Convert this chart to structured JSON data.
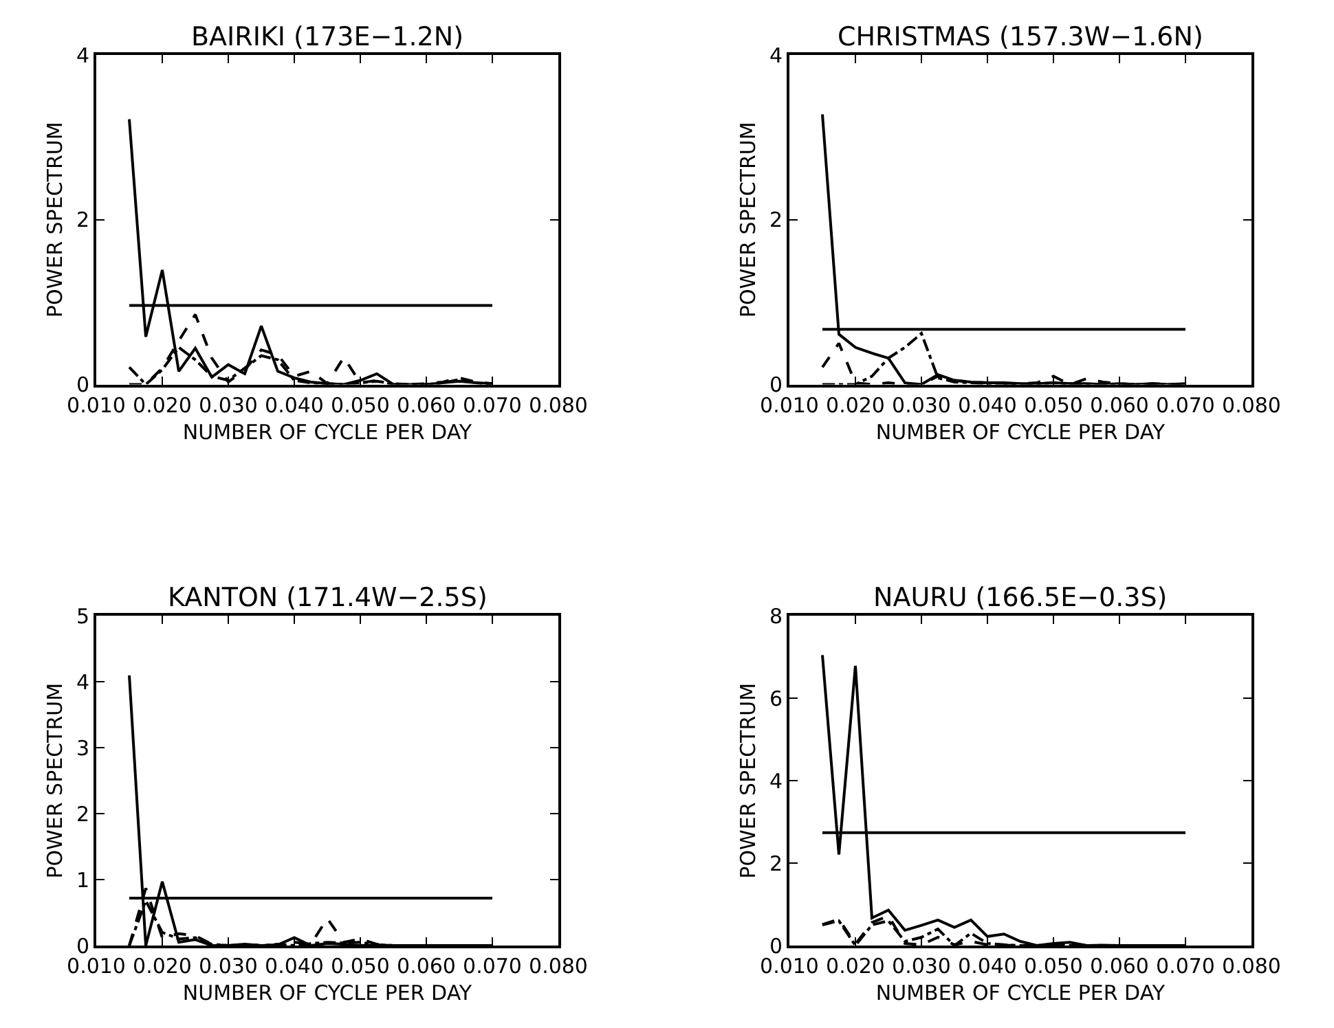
{
  "chart_data": [
    {
      "type": "line",
      "title": "BAIRIKI (173E−1.2N)",
      "xlabel": "NUMBER OF CYCLE PER DAY",
      "ylabel": "POWER SPECTRUM",
      "xlim": [
        0.01,
        0.08
      ],
      "xticks": [
        {
          "value": 0.01,
          "label": "0.010"
        },
        {
          "value": 0.02,
          "label": "0.020"
        },
        {
          "value": 0.03,
          "label": "0.030"
        },
        {
          "value": 0.04,
          "label": "0.040"
        },
        {
          "value": 0.05,
          "label": "0.050"
        },
        {
          "value": 0.06,
          "label": "0.060"
        },
        {
          "value": 0.07,
          "label": "0.070"
        },
        {
          "value": 0.08,
          "label": "0.080"
        }
      ],
      "ylim": [
        0,
        4
      ],
      "yticks": [
        0,
        2,
        4
      ],
      "x": [
        0.015,
        0.0175,
        0.02,
        0.0225,
        0.025,
        0.0275,
        0.03,
        0.0325,
        0.035,
        0.0375,
        0.04,
        0.0425,
        0.045,
        0.0475,
        0.05,
        0.0525,
        0.055,
        0.0575,
        0.06,
        0.0625,
        0.065,
        0.0675,
        0.07
      ],
      "series": [
        {
          "color": "#000000",
          "line_style": "solid",
          "values": [
            3.22,
            0.58,
            1.39,
            0.16,
            0.44,
            0.09,
            0.24,
            0.13,
            0.71,
            0.16,
            0.08,
            0.03,
            0.01,
            0.0,
            0.05,
            0.13,
            0.0,
            0.0,
            0.0,
            0.02,
            0.04,
            0.02,
            0.01
          ]
        },
        {
          "color": "#000000",
          "line_style": "dashed",
          "values": [
            0.0,
            0.0,
            0.2,
            0.53,
            0.85,
            0.32,
            0.03,
            0.18,
            0.42,
            0.36,
            0.1,
            0.16,
            0.01,
            0.33,
            0.02,
            0.05,
            0.0,
            0.0,
            0.01,
            0.03,
            0.08,
            0.03,
            0.01
          ]
        },
        {
          "color": "#000000",
          "line_style": "dotted",
          "values": [
            0.21,
            0.0,
            0.18,
            0.45,
            0.3,
            0.1,
            0.05,
            0.2,
            0.35,
            0.3,
            0.05,
            0.02,
            0.01,
            0.0,
            0.02,
            0.04,
            0.01,
            0.0,
            0.0,
            0.02,
            0.06,
            0.02,
            0.0
          ]
        },
        {
          "color": "#000000",
          "line_style": "solid",
          "values": [
            0.96,
            0.96,
            0.96,
            0.96,
            0.96,
            0.96,
            0.96,
            0.96,
            0.96,
            0.96,
            0.96,
            0.96,
            0.96,
            0.96,
            0.96,
            0.96,
            0.96,
            0.96,
            0.96,
            0.96,
            0.96,
            0.96,
            0.96
          ]
        }
      ]
    },
    {
      "type": "line",
      "title": "CHRISTMAS (157.3W−1.6N)",
      "xlabel": "NUMBER OF CYCLE PER DAY",
      "ylabel": "POWER SPECTRUM",
      "xlim": [
        0.01,
        0.08
      ],
      "xticks": [
        {
          "value": 0.01,
          "label": "0.010"
        },
        {
          "value": 0.02,
          "label": "0.020"
        },
        {
          "value": 0.03,
          "label": "0.030"
        },
        {
          "value": 0.04,
          "label": "0.040"
        },
        {
          "value": 0.05,
          "label": "0.050"
        },
        {
          "value": 0.06,
          "label": "0.060"
        },
        {
          "value": 0.07,
          "label": "0.070"
        },
        {
          "value": 0.08,
          "label": "0.080"
        }
      ],
      "ylim": [
        0,
        4
      ],
      "yticks": [
        0,
        2,
        4
      ],
      "x": [
        0.015,
        0.0175,
        0.02,
        0.0225,
        0.025,
        0.0275,
        0.03,
        0.0325,
        0.035,
        0.0375,
        0.04,
        0.0425,
        0.045,
        0.0475,
        0.05,
        0.0525,
        0.055,
        0.0575,
        0.06,
        0.0625,
        0.065,
        0.0675,
        0.07
      ],
      "series": [
        {
          "color": "#000000",
          "line_style": "solid",
          "values": [
            3.28,
            0.61,
            0.45,
            0.38,
            0.32,
            0.02,
            0.0,
            0.12,
            0.05,
            0.03,
            0.02,
            0.02,
            0.01,
            0.01,
            0.02,
            0.01,
            0.01,
            0.0,
            0.01,
            0.0,
            0.01,
            0.0,
            0.01
          ]
        },
        {
          "color": "#000000",
          "line_style": "dashed",
          "values": [
            0.21,
            0.5,
            0.02,
            0.0,
            0.02,
            0.0,
            0.0,
            0.1,
            0.05,
            0.03,
            0.02,
            0.01,
            0.01,
            0.02,
            0.1,
            0.0,
            0.07,
            0.03,
            0.01,
            0.0,
            0.01,
            0.0,
            0.0
          ]
        },
        {
          "color": "#000000",
          "line_style": "dotted",
          "values": [
            0.0,
            0.0,
            0.0,
            0.1,
            0.32,
            0.45,
            0.62,
            0.08,
            0.03,
            0.02,
            0.01,
            0.01,
            0.0,
            0.01,
            0.02,
            0.01,
            0.0,
            0.0,
            0.0,
            0.0,
            0.0,
            0.0,
            0.0
          ]
        },
        {
          "color": "#000000",
          "line_style": "solid",
          "values": [
            0.67,
            0.67,
            0.67,
            0.67,
            0.67,
            0.67,
            0.67,
            0.67,
            0.67,
            0.67,
            0.67,
            0.67,
            0.67,
            0.67,
            0.67,
            0.67,
            0.67,
            0.67,
            0.67,
            0.67,
            0.67,
            0.67,
            0.67
          ]
        }
      ]
    },
    {
      "type": "line",
      "title": "KANTON (171.4W−2.5S)",
      "xlabel": "NUMBER OF CYCLE PER DAY",
      "ylabel": "POWER SPECTRUM",
      "xlim": [
        0.01,
        0.08
      ],
      "xticks": [
        {
          "value": 0.01,
          "label": "0.010"
        },
        {
          "value": 0.02,
          "label": "0.020"
        },
        {
          "value": 0.03,
          "label": "0.030"
        },
        {
          "value": 0.04,
          "label": "0.040"
        },
        {
          "value": 0.05,
          "label": "0.050"
        },
        {
          "value": 0.06,
          "label": "0.060"
        },
        {
          "value": 0.07,
          "label": "0.070"
        },
        {
          "value": 0.08,
          "label": "0.080"
        }
      ],
      "ylim": [
        0,
        5
      ],
      "yticks": [
        0,
        1,
        2,
        3,
        4,
        5
      ],
      "x": [
        0.015,
        0.0175,
        0.02,
        0.0225,
        0.025,
        0.0275,
        0.03,
        0.0325,
        0.035,
        0.0375,
        0.04,
        0.0425,
        0.045,
        0.0475,
        0.05,
        0.0525,
        0.055,
        0.0575,
        0.06,
        0.0625,
        0.065,
        0.0675,
        0.07
      ],
      "series": [
        {
          "color": "#000000",
          "line_style": "solid",
          "values": [
            4.1,
            0.0,
            0.97,
            0.05,
            0.09,
            0.0,
            0.0,
            0.02,
            0.0,
            0.01,
            0.12,
            0.0,
            0.03,
            0.02,
            0.0,
            0.01,
            0.0,
            0.0,
            0.0,
            0.0,
            0.0,
            0.0,
            0.0
          ]
        },
        {
          "color": "#000000",
          "line_style": "dashed",
          "values": [
            0.0,
            0.87,
            0.12,
            0.18,
            0.15,
            0.02,
            0.0,
            0.0,
            0.01,
            0.0,
            0.05,
            0.02,
            0.41,
            0.05,
            0.1,
            0.02,
            0.0,
            0.0,
            0.0,
            0.0,
            0.0,
            0.0,
            0.0
          ]
        },
        {
          "color": "#000000",
          "line_style": "dotted",
          "values": [
            0.0,
            0.68,
            0.2,
            0.1,
            0.12,
            0.02,
            0.0,
            0.01,
            0.0,
            0.02,
            0.0,
            0.03,
            0.05,
            0.04,
            0.05,
            0.01,
            0.0,
            0.0,
            0.0,
            0.0,
            0.0,
            0.0,
            0.0
          ]
        },
        {
          "color": "#000000",
          "line_style": "solid",
          "values": [
            0.72,
            0.72,
            0.72,
            0.72,
            0.72,
            0.72,
            0.72,
            0.72,
            0.72,
            0.72,
            0.72,
            0.72,
            0.72,
            0.72,
            0.72,
            0.72,
            0.72,
            0.72,
            0.72,
            0.72,
            0.72,
            0.72,
            0.72
          ]
        }
      ]
    },
    {
      "type": "line",
      "title": "NAURU (166.5E−0.3S)",
      "xlabel": "NUMBER OF CYCLE PER DAY",
      "ylabel": "POWER SPECTRUM",
      "xlim": [
        0.01,
        0.08
      ],
      "xticks": [
        {
          "value": 0.01,
          "label": "0.010"
        },
        {
          "value": 0.02,
          "label": "0.020"
        },
        {
          "value": 0.03,
          "label": "0.030"
        },
        {
          "value": 0.04,
          "label": "0.040"
        },
        {
          "value": 0.05,
          "label": "0.050"
        },
        {
          "value": 0.06,
          "label": "0.060"
        },
        {
          "value": 0.07,
          "label": "0.070"
        },
        {
          "value": 0.08,
          "label": "0.080"
        }
      ],
      "ylim": [
        0,
        8
      ],
      "yticks": [
        0,
        2,
        4,
        6,
        8
      ],
      "x": [
        0.015,
        0.0175,
        0.02,
        0.0225,
        0.025,
        0.0275,
        0.03,
        0.0325,
        0.035,
        0.0375,
        0.04,
        0.0425,
        0.045,
        0.0475,
        0.05,
        0.0525,
        0.055,
        0.0575,
        0.06,
        0.0625,
        0.065,
        0.0675,
        0.07
      ],
      "series": [
        {
          "color": "#000000",
          "line_style": "solid",
          "values": [
            7.05,
            2.21,
            6.79,
            0.67,
            0.86,
            0.37,
            0.49,
            0.62,
            0.44,
            0.62,
            0.22,
            0.28,
            0.1,
            0.0,
            0.05,
            0.08,
            0.0,
            0.01,
            0.0,
            0.0,
            0.0,
            0.0,
            0.0
          ]
        },
        {
          "color": "#000000",
          "line_style": "dashed",
          "values": [
            0.51,
            0.64,
            0.03,
            0.56,
            0.72,
            0.05,
            0.02,
            0.2,
            0.02,
            0.1,
            0.02,
            0.01,
            0.0,
            0.0,
            0.03,
            0.0,
            0.01,
            0.0,
            0.0,
            0.0,
            0.0,
            0.0,
            0.0
          ]
        },
        {
          "color": "#000000",
          "line_style": "dotted",
          "values": [
            0.5,
            0.6,
            0.0,
            0.5,
            0.6,
            0.1,
            0.2,
            0.4,
            0.0,
            0.3,
            0.05,
            0.02,
            0.0,
            0.0,
            0.02,
            0.0,
            0.0,
            0.0,
            0.0,
            0.0,
            0.0,
            0.0,
            0.0
          ]
        },
        {
          "color": "#000000",
          "line_style": "solid",
          "values": [
            2.74,
            2.74,
            2.74,
            2.74,
            2.74,
            2.74,
            2.74,
            2.74,
            2.74,
            2.74,
            2.74,
            2.74,
            2.74,
            2.74,
            2.74,
            2.74,
            2.74,
            2.74,
            2.74,
            2.74,
            2.74,
            2.74,
            2.74
          ]
        }
      ]
    }
  ]
}
